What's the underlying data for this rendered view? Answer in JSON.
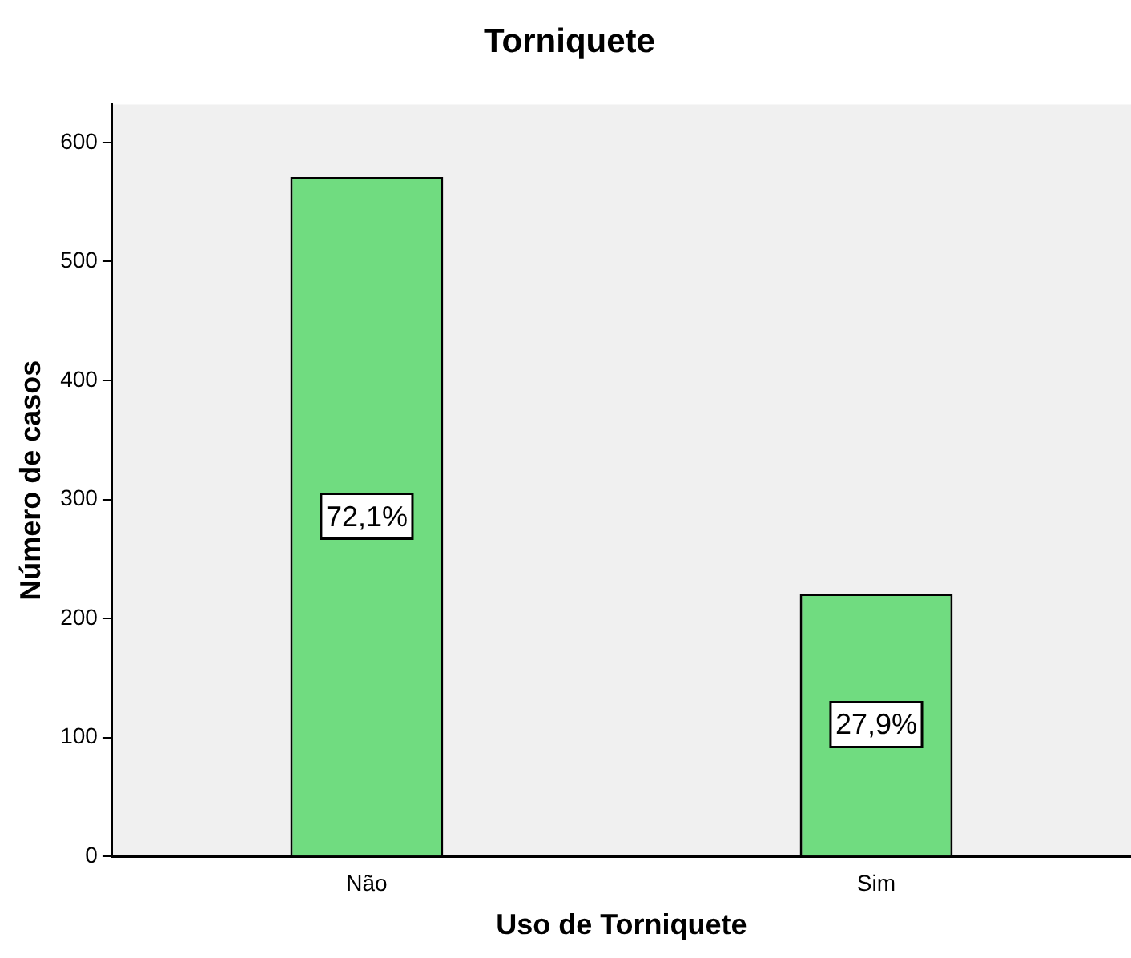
{
  "chart_data": {
    "type": "bar",
    "title": "Torniquete",
    "xlabel": "Uso de Torniquete",
    "ylabel": "Número de casos",
    "categories": [
      "Não",
      "Sim"
    ],
    "values": [
      571,
      221
    ],
    "color": "#70dc80",
    "annotations": [
      "72,1%",
      "27,9%"
    ],
    "ylim": [
      0,
      632
    ],
    "yticks": [
      0,
      100,
      200,
      300,
      400,
      500,
      600
    ],
    "grid": false,
    "legend": false
  }
}
